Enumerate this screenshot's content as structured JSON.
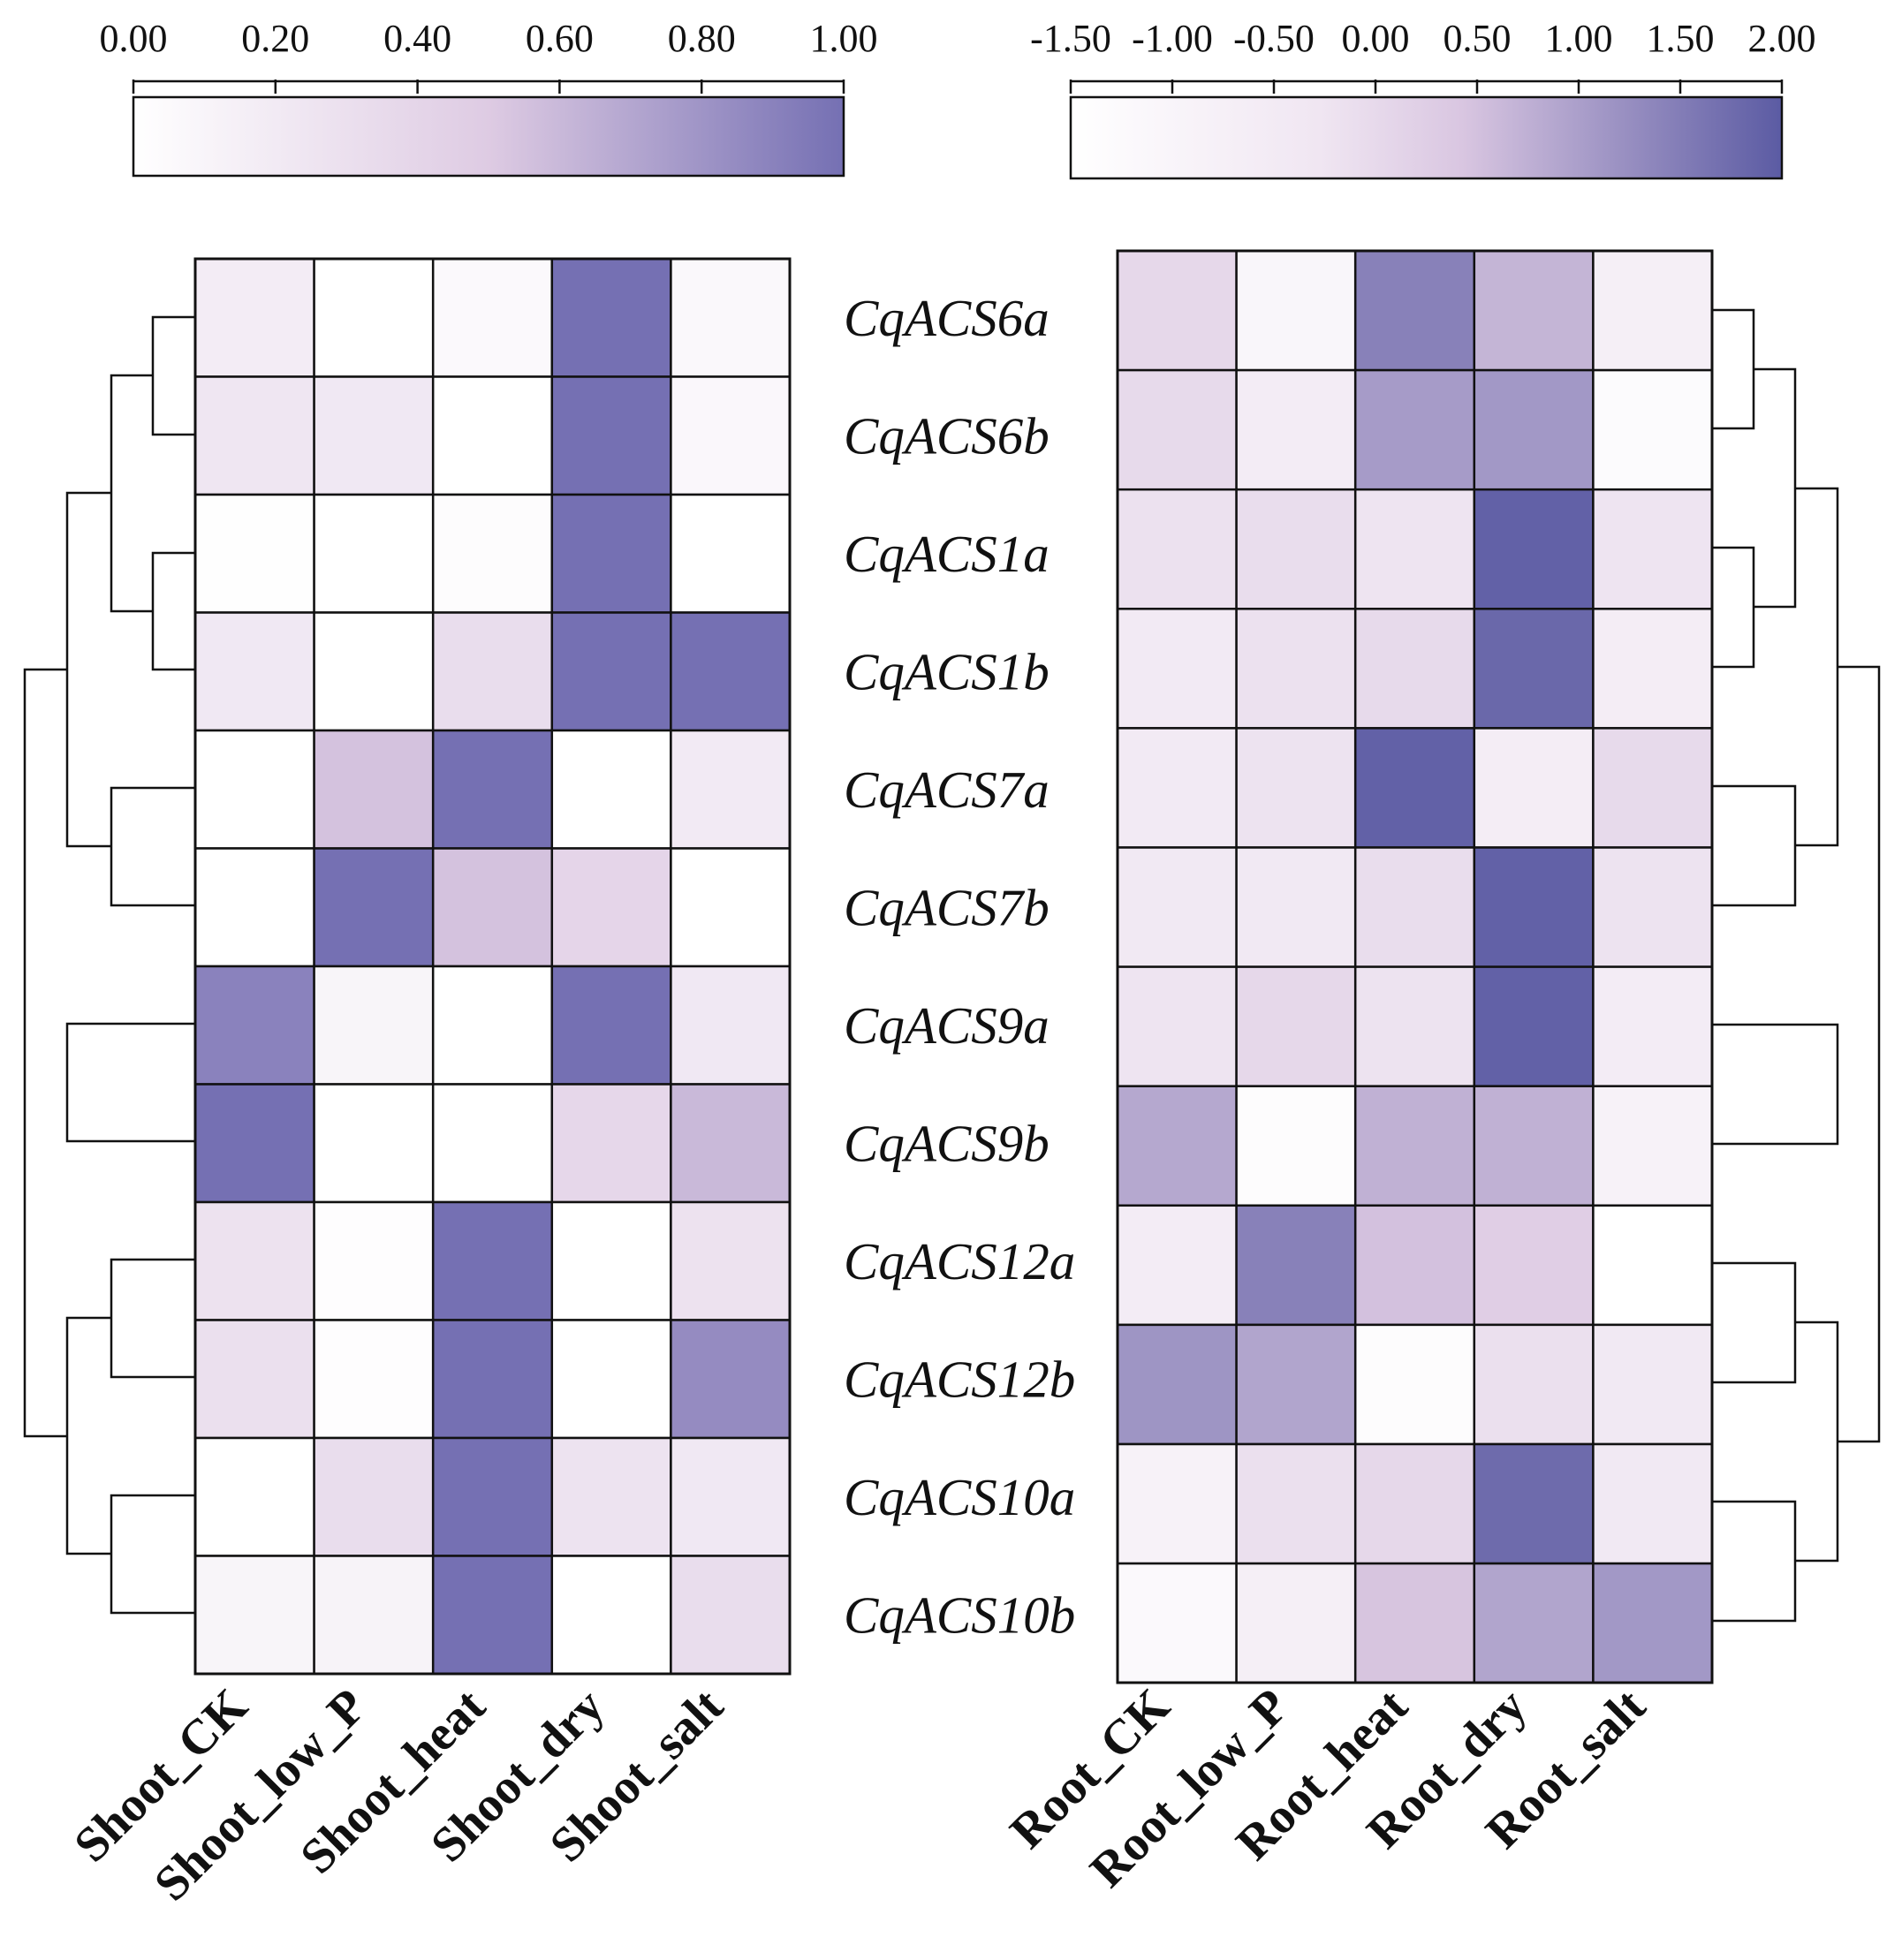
{
  "chart_data": [
    {
      "type": "heatmap",
      "name": "shoot",
      "colorbar": {
        "ticks": [
          "0.00",
          "0.20",
          "0.40",
          "0.60",
          "0.80",
          "1.00"
        ],
        "range": [
          0,
          1
        ],
        "colors": [
          "#ffffff",
          "#decbe3",
          "#7570b3"
        ]
      },
      "rows": [
        "CqACS6a",
        "CqACS6b",
        "CqACS1a",
        "CqACS1b",
        "CqACS7a",
        "CqACS7b",
        "CqACS9a",
        "CqACS9b",
        "CqACS12a",
        "CqACS12b",
        "CqACS10a",
        "CqACS10b"
      ],
      "columns": [
        "Shoot_CK",
        "Shoot_low_P",
        "Shoot_heat",
        "Shoot_dry",
        "Shoot_salt"
      ],
      "values": [
        [
          0.18,
          0.0,
          0.06,
          1.0,
          0.07
        ],
        [
          0.24,
          0.22,
          0.0,
          1.0,
          0.08
        ],
        [
          0.01,
          0.0,
          0.03,
          1.0,
          0.0
        ],
        [
          0.22,
          0.0,
          0.33,
          1.0,
          1.0
        ],
        [
          0.0,
          0.55,
          1.0,
          0.0,
          0.2
        ],
        [
          0.0,
          1.0,
          0.55,
          0.4,
          0.0
        ],
        [
          0.9,
          0.1,
          0.0,
          1.0,
          0.22
        ],
        [
          1.0,
          0.0,
          0.0,
          0.38,
          0.6
        ],
        [
          0.28,
          0.02,
          1.0,
          0.0,
          0.28
        ],
        [
          0.3,
          0.02,
          1.0,
          0.0,
          0.85
        ],
        [
          0.0,
          0.33,
          1.0,
          0.27,
          0.22
        ],
        [
          0.1,
          0.12,
          1.0,
          0.0,
          0.33
        ]
      ],
      "dendrogram_side": "left"
    },
    {
      "type": "heatmap",
      "name": "root",
      "colorbar": {
        "ticks": [
          "-1.50",
          "-1.00",
          "-0.50",
          "0.00",
          "0.50",
          "1.00",
          "1.50",
          "2.00"
        ],
        "range": [
          -1.5,
          2.0
        ],
        "colors": [
          "#ffffff",
          "#decbe3",
          "#5b5ba3"
        ]
      },
      "rows": [
        "CqACS6a",
        "CqACS6b",
        "CqACS1a",
        "CqACS1b",
        "CqACS7a",
        "CqACS7b",
        "CqACS9a",
        "CqACS9b",
        "CqACS12a",
        "CqACS12b",
        "CqACS10a",
        "CqACS10b"
      ],
      "columns": [
        "Root_CK",
        "Root_low_P",
        "Root_heat",
        "Root_dry",
        "Root_salt"
      ],
      "values": [
        [
          -0.2,
          -1.2,
          1.4,
          0.6,
          -0.95
        ],
        [
          -0.25,
          -0.85,
          1.0,
          1.05,
          -1.35
        ],
        [
          -0.5,
          -0.35,
          -0.6,
          1.9,
          -0.6
        ],
        [
          -0.8,
          -0.5,
          -0.25,
          1.8,
          -0.9
        ],
        [
          -0.8,
          -0.55,
          1.9,
          -0.9,
          -0.25
        ],
        [
          -0.75,
          -0.75,
          -0.35,
          1.9,
          -0.55
        ],
        [
          -0.6,
          -0.2,
          -0.55,
          1.9,
          -0.85
        ],
        [
          0.8,
          -1.4,
          0.65,
          0.65,
          -1.05
        ],
        [
          -0.85,
          1.4,
          0.4,
          0.15,
          -1.55
        ],
        [
          1.1,
          0.85,
          -1.4,
          -0.45,
          -0.75
        ],
        [
          -1.05,
          -0.45,
          -0.2,
          1.75,
          -0.75
        ],
        [
          -1.3,
          -0.95,
          0.35,
          0.85,
          1.05
        ]
      ],
      "dendrogram_side": "right"
    }
  ]
}
